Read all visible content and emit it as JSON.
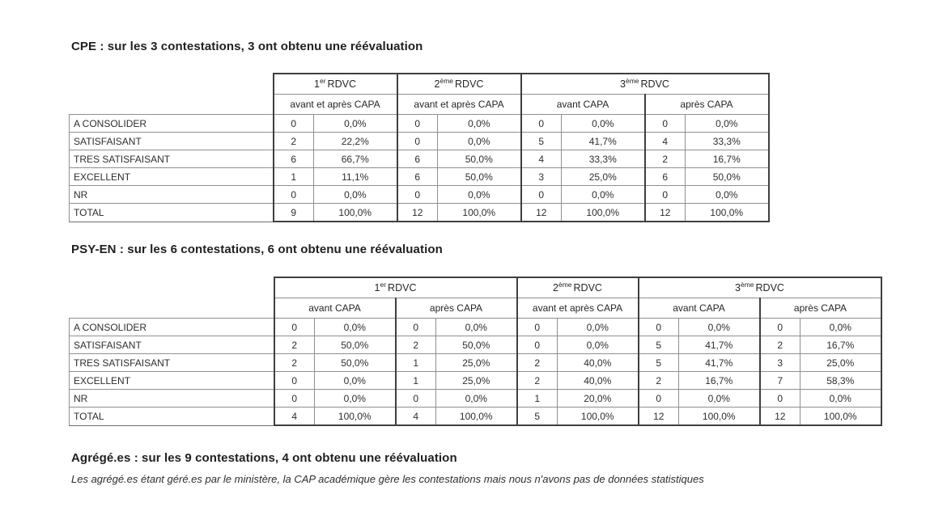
{
  "cpe": {
    "title": "CPE : sur les 3 contestations, 3 ont obtenu une réévaluation",
    "header": {
      "groups": [
        {
          "num": "1",
          "sup": "er",
          "name": "RDVC"
        },
        {
          "num": "2",
          "sup": "ème",
          "name": "RDVC"
        },
        {
          "num": "3",
          "sup": "ème",
          "name": "RDVC"
        }
      ],
      "sub": [
        "avant et après CAPA",
        "avant et après CAPA",
        "avant CAPA",
        "après CAPA"
      ]
    },
    "rows": [
      {
        "label": "A CONSOLIDER",
        "cells": [
          "0",
          "0,0%",
          "0",
          "0,0%",
          "0",
          "0,0%",
          "0",
          "0,0%"
        ]
      },
      {
        "label": "SATISFAISANT",
        "cells": [
          "2",
          "22,2%",
          "0",
          "0,0%",
          "5",
          "41,7%",
          "4",
          "33,3%"
        ]
      },
      {
        "label": "TRES SATISFAISANT",
        "cells": [
          "6",
          "66,7%",
          "6",
          "50,0%",
          "4",
          "33,3%",
          "2",
          "16,7%"
        ]
      },
      {
        "label": "EXCELLENT",
        "cells": [
          "1",
          "11,1%",
          "6",
          "50,0%",
          "3",
          "25,0%",
          "6",
          "50,0%"
        ]
      },
      {
        "label": "NR",
        "cells": [
          "0",
          "0,0%",
          "0",
          "0,0%",
          "0",
          "0,0%",
          "0",
          "0,0%"
        ]
      },
      {
        "label": "TOTAL",
        "cells": [
          "9",
          "100,0%",
          "12",
          "100,0%",
          "12",
          "100,0%",
          "12",
          "100,0%"
        ]
      }
    ]
  },
  "psyen": {
    "title": "PSY-EN : sur les 6 contestations, 6 ont obtenu une réévaluation",
    "header": {
      "groups": [
        {
          "num": "1",
          "sup": "er",
          "name": "RDVC"
        },
        {
          "num": "2",
          "sup": "ème",
          "name": "RDVC"
        },
        {
          "num": "3",
          "sup": "ème",
          "name": "RDVC"
        }
      ],
      "sub": [
        "avant CAPA",
        "après CAPA",
        "avant et après CAPA",
        "avant CAPA",
        "après CAPA"
      ]
    },
    "rows": [
      {
        "label": "A CONSOLIDER",
        "cells": [
          "0",
          "0,0%",
          "0",
          "0,0%",
          "0",
          "0,0%",
          "0",
          "0,0%",
          "0",
          "0,0%"
        ]
      },
      {
        "label": "SATISFAISANT",
        "cells": [
          "2",
          "50,0%",
          "2",
          "50,0%",
          "0",
          "0,0%",
          "5",
          "41,7%",
          "2",
          "16,7%"
        ]
      },
      {
        "label": "TRES SATISFAISANT",
        "cells": [
          "2",
          "50,0%",
          "1",
          "25,0%",
          "2",
          "40,0%",
          "5",
          "41,7%",
          "3",
          "25,0%"
        ]
      },
      {
        "label": "EXCELLENT",
        "cells": [
          "0",
          "0,0%",
          "1",
          "25,0%",
          "2",
          "40,0%",
          "2",
          "16,7%",
          "7",
          "58,3%"
        ]
      },
      {
        "label": "NR",
        "cells": [
          "0",
          "0,0%",
          "0",
          "0,0%",
          "1",
          "20,0%",
          "0",
          "0,0%",
          "0",
          "0,0%"
        ]
      },
      {
        "label": "TOTAL",
        "cells": [
          "4",
          "100,0%",
          "4",
          "100,0%",
          "5",
          "100,0%",
          "12",
          "100,0%",
          "12",
          "100,0%"
        ]
      }
    ]
  },
  "agrege": {
    "title": "Agrégé.es : sur les 9 contestations, 4 ont obtenu une réévaluation",
    "note": "Les agrégé.es étant géré.es par le ministère, la CAP académique gère les contestations mais nous n'avons pas de données statistiques"
  }
}
